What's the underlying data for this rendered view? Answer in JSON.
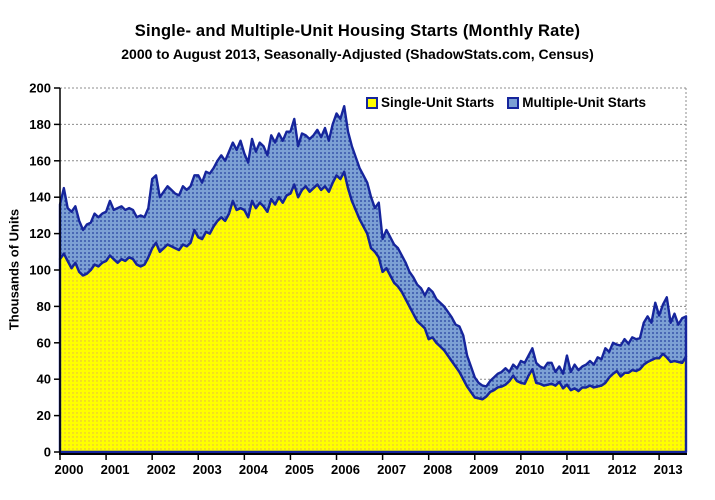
{
  "title": "Single- and Multiple-Unit Housing Starts (Monthly Rate)",
  "subtitle": "2000 to August 2013, Seasonally-Adjusted (ShadowStats.com, Census)",
  "y_axis_title": "Thousands of Units",
  "legend": {
    "items": [
      {
        "label": "Single-Unit Starts",
        "color": "#FFFF00"
      },
      {
        "label": "Multiple-Unit Starts",
        "color": "#7CA0D4"
      }
    ]
  },
  "colors": {
    "single_fill": "#FFFF00",
    "single_dot": "#DFAE54",
    "multi_fill": "#7CA0D4",
    "multi_dot": "#24409F",
    "line": "#16259C",
    "grid": "#8C8C8C",
    "axis": "#000000"
  },
  "chart_data": {
    "type": "area",
    "stacked": true,
    "title": "Single- and Multiple-Unit Housing Starts (Monthly Rate)",
    "subtitle": "2000 to August 2013, Seasonally-Adjusted (ShadowStats.com, Census)",
    "ylabel": "Thousands of Units",
    "xlabel": "",
    "ylim": [
      0,
      200
    ],
    "ytick_step": 20,
    "grid": "horizontal, dotted gray, every 20",
    "legend_position": "top-inside",
    "x_start": "2000-01",
    "x_end": "2013-08",
    "x_unit": "month",
    "year_labels": [
      2000,
      2001,
      2002,
      2003,
      2004,
      2005,
      2006,
      2007,
      2008,
      2009,
      2010,
      2011,
      2012,
      2013
    ],
    "series": [
      {
        "name": "Single-Unit Starts",
        "values": [
          106,
          109,
          105,
          101,
          104,
          99,
          97,
          98,
          100,
          103,
          102,
          104,
          105,
          108,
          106,
          104,
          106,
          105,
          107,
          106,
          103,
          102,
          103,
          107,
          112,
          115,
          110,
          112,
          114,
          113,
          112,
          111,
          114,
          113,
          115,
          122,
          118,
          117,
          121,
          120,
          124,
          127,
          129,
          127,
          131,
          138,
          133,
          134,
          133,
          129,
          138,
          134,
          137,
          135,
          132,
          139,
          136,
          140,
          137,
          141,
          142,
          147,
          140,
          144,
          146,
          143,
          145,
          147,
          144,
          146,
          143,
          148,
          152,
          150,
          154,
          145,
          138,
          133,
          128,
          124,
          120,
          112,
          110,
          107,
          99,
          101,
          97,
          93,
          91,
          88,
          84,
          80,
          76,
          72,
          70,
          68,
          62,
          63,
          60,
          58,
          56,
          53,
          50,
          47,
          44,
          40,
          36,
          33,
          30,
          29.5,
          29,
          30.5,
          33,
          34,
          35.5,
          36,
          37,
          39,
          42,
          39,
          38,
          37.5,
          42,
          45.5,
          38,
          37.5,
          36.5,
          37,
          37.5,
          36.5,
          38.5,
          35,
          37,
          34,
          35,
          33.5,
          35.5,
          35.5,
          36.5,
          35.5,
          36,
          36.5,
          38,
          41,
          43,
          44.5,
          41.5,
          43.5,
          43.5,
          45,
          44.5,
          45.5,
          48,
          49.5,
          50.5,
          51.5,
          51.5,
          54,
          52,
          49.5,
          50,
          49.5,
          49,
          52.5
        ]
      },
      {
        "name": "Multiple-Unit Starts",
        "values": [
          30,
          36,
          29,
          31,
          31,
          28,
          25,
          27,
          26,
          28,
          27,
          27,
          27,
          30,
          27,
          30,
          29,
          28,
          27,
          27,
          26,
          28,
          26,
          27,
          38,
          37,
          30,
          31,
          32,
          31,
          30,
          30,
          32,
          31,
          31,
          30,
          34,
          31,
          33,
          33,
          32,
          33,
          34,
          33,
          34,
          32,
          33,
          37,
          31,
          30,
          34,
          31,
          33,
          33,
          31,
          35,
          34,
          35,
          34,
          35,
          34,
          36,
          28,
          31,
          28,
          29,
          29,
          30,
          29,
          32,
          28,
          32,
          34,
          33,
          36,
          31,
          30,
          29,
          28,
          28,
          28,
          28,
          24,
          30,
          18,
          21,
          21,
          21,
          21,
          20,
          20,
          19,
          20,
          20,
          20,
          18,
          28,
          25,
          24,
          24,
          24,
          24,
          24,
          23,
          25,
          24,
          17,
          14,
          11,
          8.5,
          7.5,
          5.5,
          6,
          7,
          7.5,
          8,
          9,
          5,
          6,
          7,
          12,
          11.5,
          11,
          11.5,
          11,
          9.5,
          9.5,
          12,
          11.5,
          7.5,
          8.5,
          8,
          16,
          10,
          13,
          11.5,
          11.5,
          12.5,
          13.5,
          12.5,
          16,
          14.5,
          19,
          14,
          17,
          14.5,
          17,
          18.5,
          16,
          18,
          17.5,
          17,
          23,
          25,
          20.5,
          30.5,
          23.5,
          27,
          33,
          21.5,
          26,
          20.5,
          24.5,
          22
        ]
      }
    ]
  }
}
